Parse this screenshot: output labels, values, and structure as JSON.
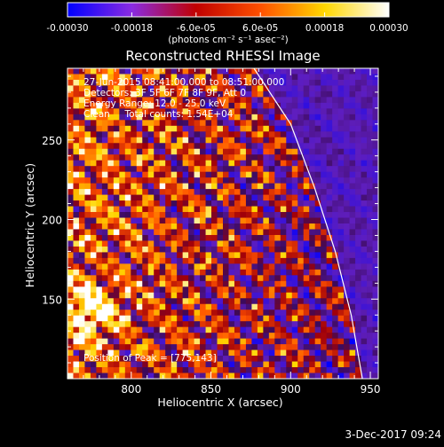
{
  "chart_data": {
    "type": "heatmap",
    "title": "Reconstructed RHESSI Image",
    "xlabel": "Heliocentric X (arcsec)",
    "ylabel": "Heliocentric Y (arcsec)",
    "xlim": [
      760,
      955
    ],
    "ylim": [
      100,
      295
    ],
    "x_ticks": [
      800,
      850,
      900,
      950
    ],
    "y_ticks": [
      150,
      200,
      250
    ],
    "colorbar": {
      "range": [
        -0.0003,
        0.0003
      ],
      "tick_values": [
        -0.0003,
        -0.00018,
        -6e-05,
        6e-05,
        0.00018,
        0.0003
      ],
      "tick_labels": [
        "-0.00030",
        "-0.00018",
        "-6.0e-05",
        "6.0e-05",
        "0.00018",
        "0.00030"
      ],
      "unit_label": "(photons cm⁻² s⁻¹ asec⁻²)",
      "colors": [
        "#0000ff",
        "#8a2be2",
        "#c00000",
        "#ff5000",
        "#ffd700",
        "#ffffff"
      ]
    },
    "annotations": [
      "27-Jun-2015 08:41:00.000 to 08:51:00.000",
      "Detectors: 3F 5F 6F 7F 8F 9F, Att 0",
      "Energy Range: 12.0 - 25.0 keV",
      "Clean     Total counts: 1.54E+04"
    ],
    "peak_label": "Position of Peak = [775,143]",
    "peak_position": [
      775,
      143
    ],
    "limb_curve": [
      [
        877,
        295
      ],
      [
        900,
        260
      ],
      [
        915,
        220
      ],
      [
        928,
        180
      ],
      [
        938,
        140
      ],
      [
        945,
        100
      ]
    ]
  },
  "footer": {
    "timestamp": "3-Dec-2017 09:24"
  }
}
